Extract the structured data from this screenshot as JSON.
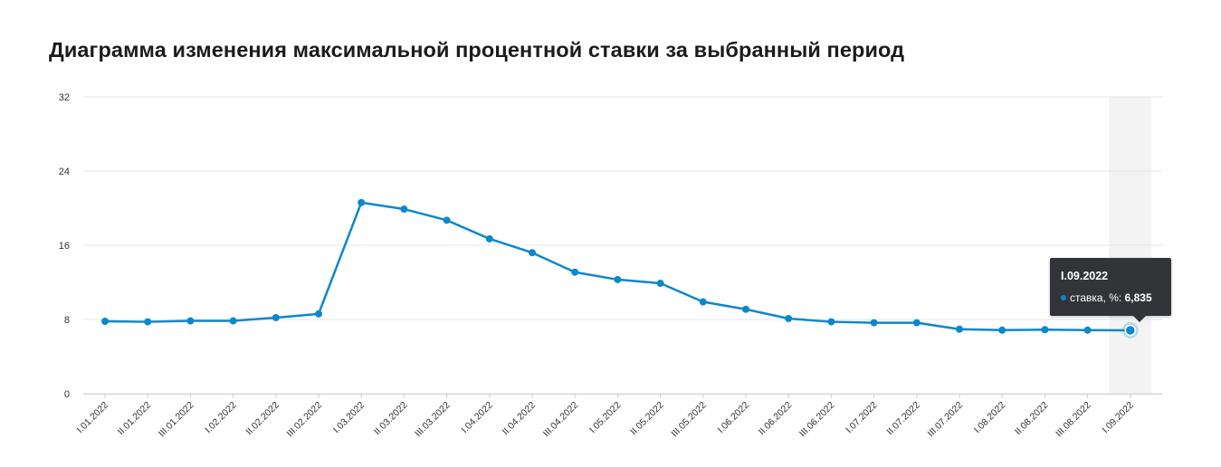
{
  "page": {
    "title": "Диаграмма изменения максимальной процентной ставки за выбранный период"
  },
  "colors": {
    "line": "#0c88cc",
    "grid": "#e6e6e6",
    "highlight": "#f3f3f3",
    "tooltip_bg": "#333438"
  },
  "chart_data": {
    "type": "line",
    "title": "Диаграмма изменения максимальной процентной ставки за выбранный период",
    "xlabel": "",
    "ylabel": "",
    "ylim": [
      0,
      32
    ],
    "yticks": [
      "0",
      "8",
      "16",
      "24",
      "32"
    ],
    "grid": true,
    "categories": [
      "I.01.2022",
      "II.01.2022",
      "III.01.2022",
      "I.02.2022",
      "II.02.2022",
      "III.02.2022",
      "I.03.2022",
      "II.03.2022",
      "III.03.2022",
      "I.04.2022",
      "II.04.2022",
      "III.04.2022",
      "I.05.2022",
      "II.05.2022",
      "III.05.2022",
      "I.06.2022",
      "II.06.2022",
      "III.06.2022",
      "I.07.2022",
      "II.07.2022",
      "III.07.2022",
      "I.08.2022",
      "II.08.2022",
      "III.08.2022",
      "I.09.2022"
    ],
    "series": [
      {
        "name": "ставка, %",
        "values": [
          7.8,
          7.75,
          7.85,
          7.85,
          8.2,
          8.6,
          20.6,
          19.9,
          18.7,
          16.7,
          15.2,
          13.1,
          12.3,
          11.9,
          9.9,
          9.1,
          8.1,
          7.75,
          7.65,
          7.65,
          6.95,
          6.85,
          6.9,
          6.85,
          6.835
        ]
      }
    ],
    "highlighted_index": 24
  },
  "tooltip": {
    "title": "I.09.2022",
    "label": "ставка, %:",
    "value": "6,835"
  }
}
